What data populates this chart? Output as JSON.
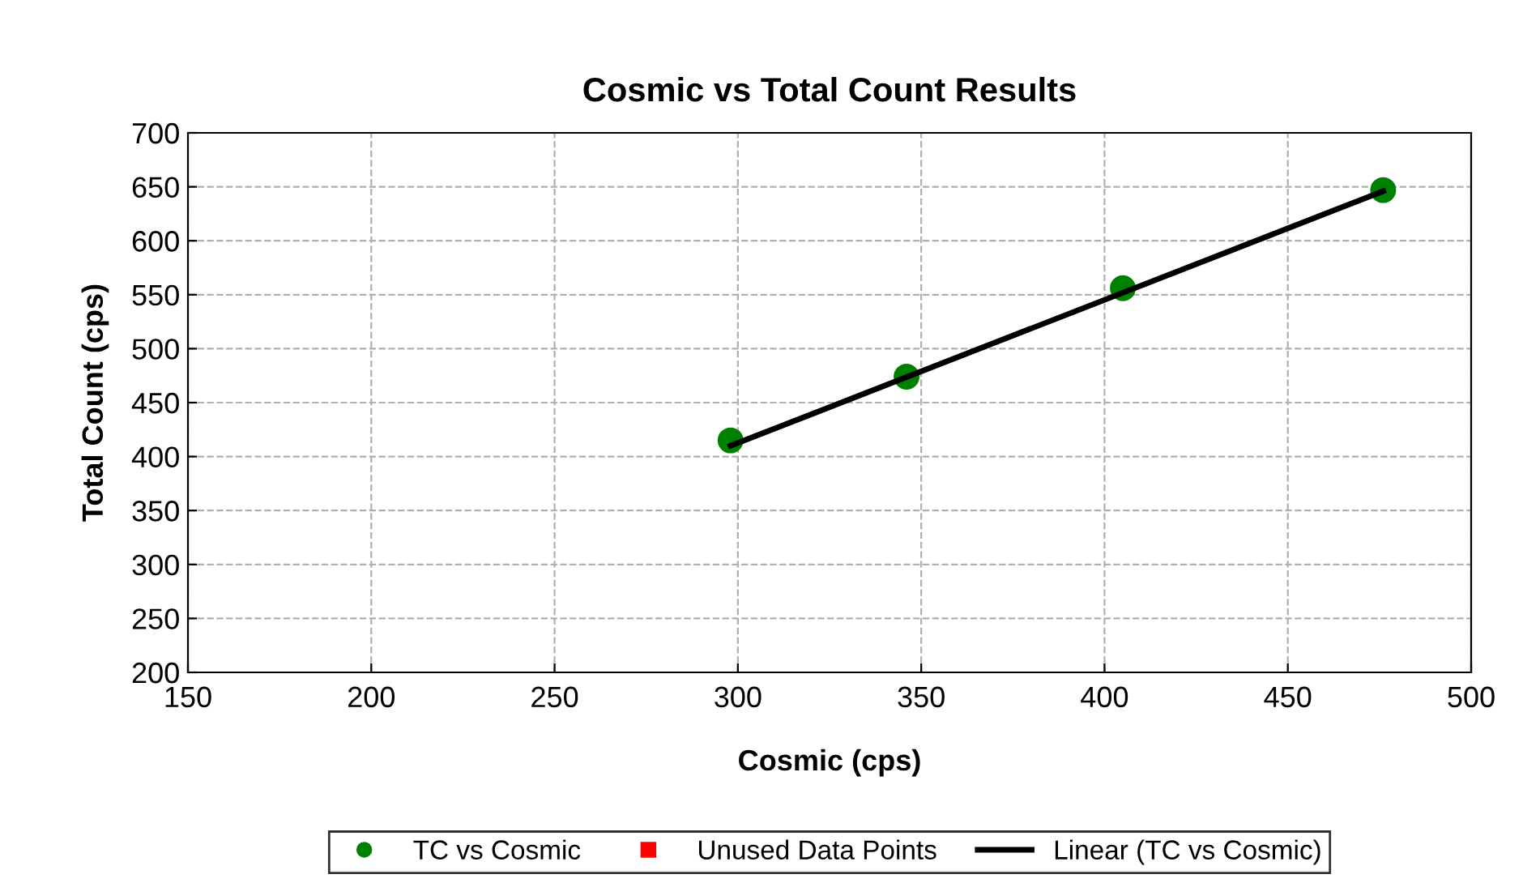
{
  "chart_data": {
    "type": "scatter",
    "title": "Cosmic vs Total Count Results",
    "xlabel": "Cosmic (cps)",
    "ylabel": "Total Count (cps)",
    "xlim": [
      150,
      500
    ],
    "xticks": [
      150,
      200,
      250,
      300,
      350,
      400,
      450,
      500
    ],
    "ylim": [
      200,
      700
    ],
    "yticks": [
      200,
      250,
      300,
      350,
      400,
      450,
      500,
      550,
      600,
      650,
      700
    ],
    "grid": true,
    "legend": "bottom",
    "series": [
      {
        "name": "TC vs Cosmic",
        "marker": "circle",
        "color": "#008000",
        "x": [
          298,
          346,
          405,
          476
        ],
        "values": [
          415,
          474,
          556,
          647
        ]
      },
      {
        "name": "Unused Data Points",
        "marker": "square",
        "color": "#ff0000"
      },
      {
        "name": "Linear (TC vs Cosmic)",
        "type": "line",
        "marker": "none",
        "line_style": "solid",
        "color": "#000000",
        "x": [
          298,
          476
        ],
        "values": [
          410,
          646
        ]
      }
    ]
  }
}
